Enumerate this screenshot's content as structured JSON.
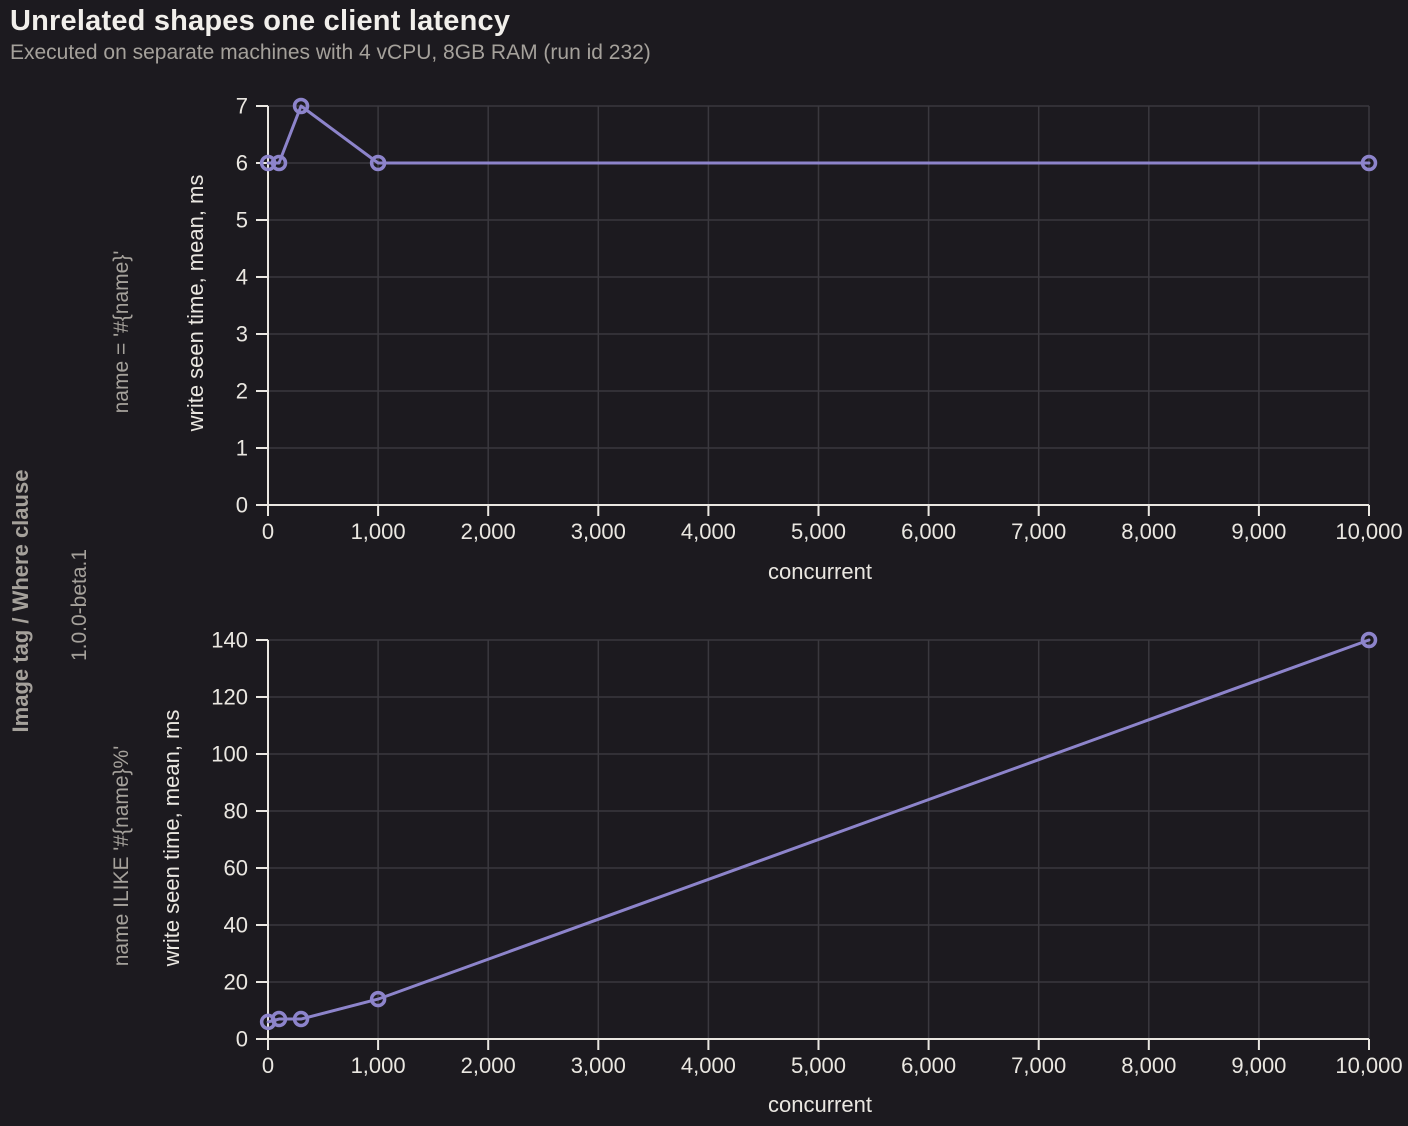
{
  "page": {
    "title": "Unrelated shapes one client latency",
    "subtitle": "Executed on separate machines with 4 vCPU, 8GB RAM (run id 232)"
  },
  "left_labels": {
    "group": "Image tag / Where clause",
    "version": "1.0.0-beta.1"
  },
  "colors": {
    "background": "#1c1a1f",
    "line": "#8d84cb",
    "axis": "#eae7e1",
    "muted_text": "#a5a19b",
    "grid": "#3a383e"
  },
  "chart_data": [
    {
      "type": "line",
      "facet_label": "name = '#{name}'",
      "xlabel": "concurrent",
      "ylabel": "write seen time, mean, ms",
      "x": [
        1,
        100,
        300,
        1000,
        10000
      ],
      "y": [
        6,
        6,
        7,
        6,
        6
      ],
      "xlim": [
        0,
        10000
      ],
      "ylim": [
        0,
        7
      ],
      "xtick_values": [
        0,
        1000,
        2000,
        3000,
        4000,
        5000,
        6000,
        7000,
        8000,
        9000,
        10000
      ],
      "xtick_labels": [
        "0",
        "1,000",
        "2,000",
        "3,000",
        "4,000",
        "5,000",
        "6,000",
        "7,000",
        "8,000",
        "9,000",
        "10,000"
      ],
      "ytick_values": [
        0,
        1,
        2,
        3,
        4,
        5,
        6,
        7
      ],
      "ytick_labels": [
        "0",
        "1",
        "2",
        "3",
        "4",
        "5",
        "6",
        "7"
      ],
      "grid": true,
      "legend": "none",
      "marker": "open-circle"
    },
    {
      "type": "line",
      "facet_label": "name ILIKE '#{name}%'",
      "xlabel": "concurrent",
      "ylabel": "write seen time, mean, ms",
      "x": [
        1,
        100,
        300,
        1000,
        10000
      ],
      "y": [
        6,
        7,
        7,
        14,
        140
      ],
      "xlim": [
        0,
        10000
      ],
      "ylim": [
        0,
        140
      ],
      "xtick_values": [
        0,
        1000,
        2000,
        3000,
        4000,
        5000,
        6000,
        7000,
        8000,
        9000,
        10000
      ],
      "xtick_labels": [
        "0",
        "1,000",
        "2,000",
        "3,000",
        "4,000",
        "5,000",
        "6,000",
        "7,000",
        "8,000",
        "9,000",
        "10,000"
      ],
      "ytick_values": [
        0,
        20,
        40,
        60,
        80,
        100,
        120,
        140
      ],
      "ytick_labels": [
        "0",
        "20",
        "40",
        "60",
        "80",
        "100",
        "120",
        "140"
      ],
      "grid": true,
      "legend": "none",
      "marker": "open-circle"
    }
  ]
}
